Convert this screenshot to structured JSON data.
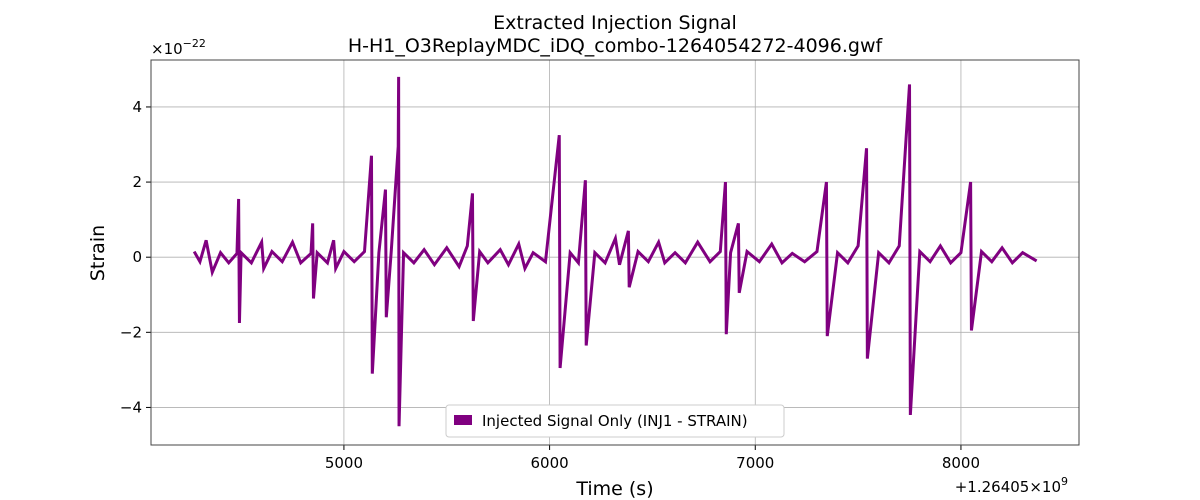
{
  "chart_data": {
    "type": "line",
    "title": "Extracted Injection Signal",
    "subtitle": "H-H1_O3ReplayMDC_iDQ_combo-1264054272-4096.gwf",
    "xlabel": "Time (s)",
    "ylabel": "Strain",
    "x_offset": {
      "base": "+1.26405×10",
      "exponent": "9"
    },
    "y_offset": {
      "base": "×10",
      "exponent": "−22"
    },
    "xlim": [
      4062,
      8574
    ],
    "ylim": [
      -5.0,
      5.25
    ],
    "xticks": [
      5000,
      6000,
      7000,
      8000
    ],
    "yticks": [
      {
        "value": -4,
        "label": "−4"
      },
      {
        "value": -2,
        "label": "−2"
      },
      0,
      2,
      4
    ],
    "grid": true,
    "legend": "lower center",
    "series": [
      {
        "name": "Injected Signal Only (INJ1 - STRAIN)",
        "color": "#800080",
        "x": [
          4272,
          4300,
          4330,
          4360,
          4400,
          4440,
          4480,
          4488,
          4492,
          4500,
          4550,
          4600,
          4610,
          4650,
          4700,
          4750,
          4790,
          4840,
          4848,
          4852,
          4870,
          4920,
          4950,
          4960,
          5000,
          5050,
          5100,
          5134,
          5138,
          5170,
          5202,
          5206,
          5230,
          5264,
          5266,
          5268,
          5290,
          5340,
          5390,
          5440,
          5500,
          5560,
          5600,
          5625,
          5629,
          5660,
          5700,
          5760,
          5800,
          5850,
          5880,
          5920,
          5980,
          6047,
          6051,
          6100,
          6140,
          6174,
          6178,
          6220,
          6270,
          6320,
          6340,
          6383,
          6387,
          6430,
          6480,
          6530,
          6560,
          6610,
          6660,
          6720,
          6780,
          6830,
          6855,
          6859,
          6880,
          6918,
          6922,
          6960,
          7020,
          7080,
          7130,
          7180,
          7240,
          7300,
          7346,
          7350,
          7400,
          7450,
          7500,
          7541,
          7545,
          7600,
          7650,
          7700,
          7750,
          7754,
          7800,
          7850,
          7900,
          7950,
          8000,
          8047,
          8051,
          8100,
          8150,
          8200,
          8250,
          8300,
          8368
        ],
        "values": [
          0.15,
          -0.12,
          0.45,
          -0.4,
          0.12,
          -0.15,
          0.1,
          1.55,
          -1.75,
          0.12,
          -0.15,
          0.4,
          -0.3,
          0.15,
          -0.12,
          0.4,
          -0.15,
          0.1,
          0.9,
          -1.1,
          0.12,
          -0.15,
          0.45,
          -0.3,
          0.15,
          -0.12,
          0.15,
          2.7,
          -3.1,
          0.12,
          1.8,
          -1.6,
          0.15,
          2.95,
          4.8,
          -4.5,
          0.12,
          -0.15,
          0.2,
          -0.2,
          0.25,
          -0.25,
          0.3,
          1.7,
          -1.7,
          0.15,
          -0.15,
          0.2,
          -0.2,
          0.35,
          -0.3,
          0.12,
          -0.12,
          3.25,
          -2.95,
          0.12,
          -0.15,
          2.05,
          -2.35,
          0.12,
          -0.15,
          0.5,
          -0.2,
          0.7,
          -0.8,
          0.15,
          -0.12,
          0.4,
          -0.15,
          0.12,
          -0.15,
          0.4,
          -0.12,
          0.15,
          2.0,
          -2.05,
          0.12,
          0.9,
          -0.95,
          0.15,
          -0.12,
          0.35,
          -0.15,
          0.1,
          -0.12,
          0.15,
          2.0,
          -2.1,
          0.12,
          -0.15,
          0.3,
          2.9,
          -2.7,
          0.12,
          -0.15,
          0.3,
          4.6,
          -4.2,
          0.15,
          -0.12,
          0.3,
          -0.15,
          0.12,
          2.0,
          -1.95,
          0.15,
          -0.12,
          0.25,
          -0.15,
          0.12,
          -0.1
        ]
      }
    ]
  }
}
